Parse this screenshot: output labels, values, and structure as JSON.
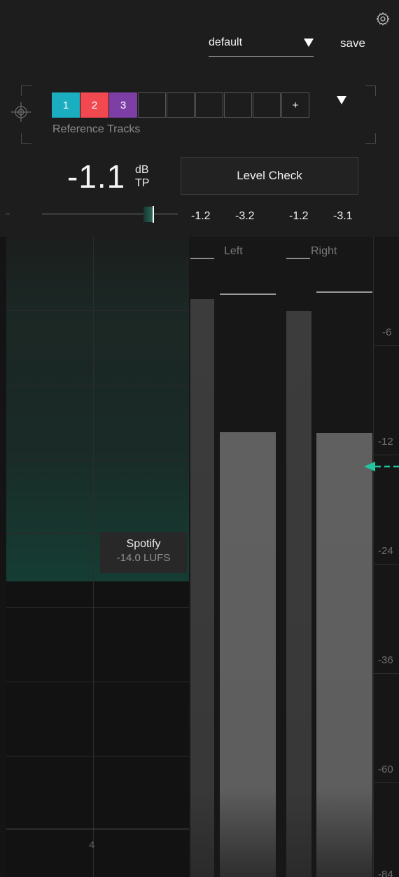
{
  "header": {
    "preset_name": "default",
    "save_label": "save",
    "settings_icon": "gear-icon"
  },
  "reference_tracks": {
    "label": "Reference Tracks",
    "slots": [
      {
        "label": "1",
        "color": "#1aaec0"
      },
      {
        "label": "2",
        "color": "#f2484f"
      },
      {
        "label": "3",
        "color": "#7d3fa6"
      },
      {
        "label": "",
        "color": ""
      },
      {
        "label": "",
        "color": ""
      },
      {
        "label": "",
        "color": ""
      },
      {
        "label": "",
        "color": ""
      },
      {
        "label": "",
        "color": ""
      },
      {
        "label": "+",
        "color": ""
      }
    ]
  },
  "true_peak": {
    "value": "-1.1",
    "unit_top": "dB",
    "unit_bottom": "TP",
    "ceiling_slider_fraction": 0.82
  },
  "level_check": {
    "label": "Level Check"
  },
  "peak_readouts": {
    "left_peak": "-1.2",
    "left_rms": "-3.2",
    "right_peak": "-1.2",
    "right_rms": "-3.1"
  },
  "meter": {
    "channels": {
      "left": "Left",
      "right": "Right"
    },
    "scale_ticks": [
      "-6",
      "-12",
      "-24",
      "-36",
      "-60",
      "-84"
    ],
    "histogram_x_label": "4",
    "target": {
      "platform": "Spotify",
      "loudness": "-14.0 LUFS",
      "color": "#1fc6a0"
    },
    "accent_color": "#1fc6a0"
  }
}
